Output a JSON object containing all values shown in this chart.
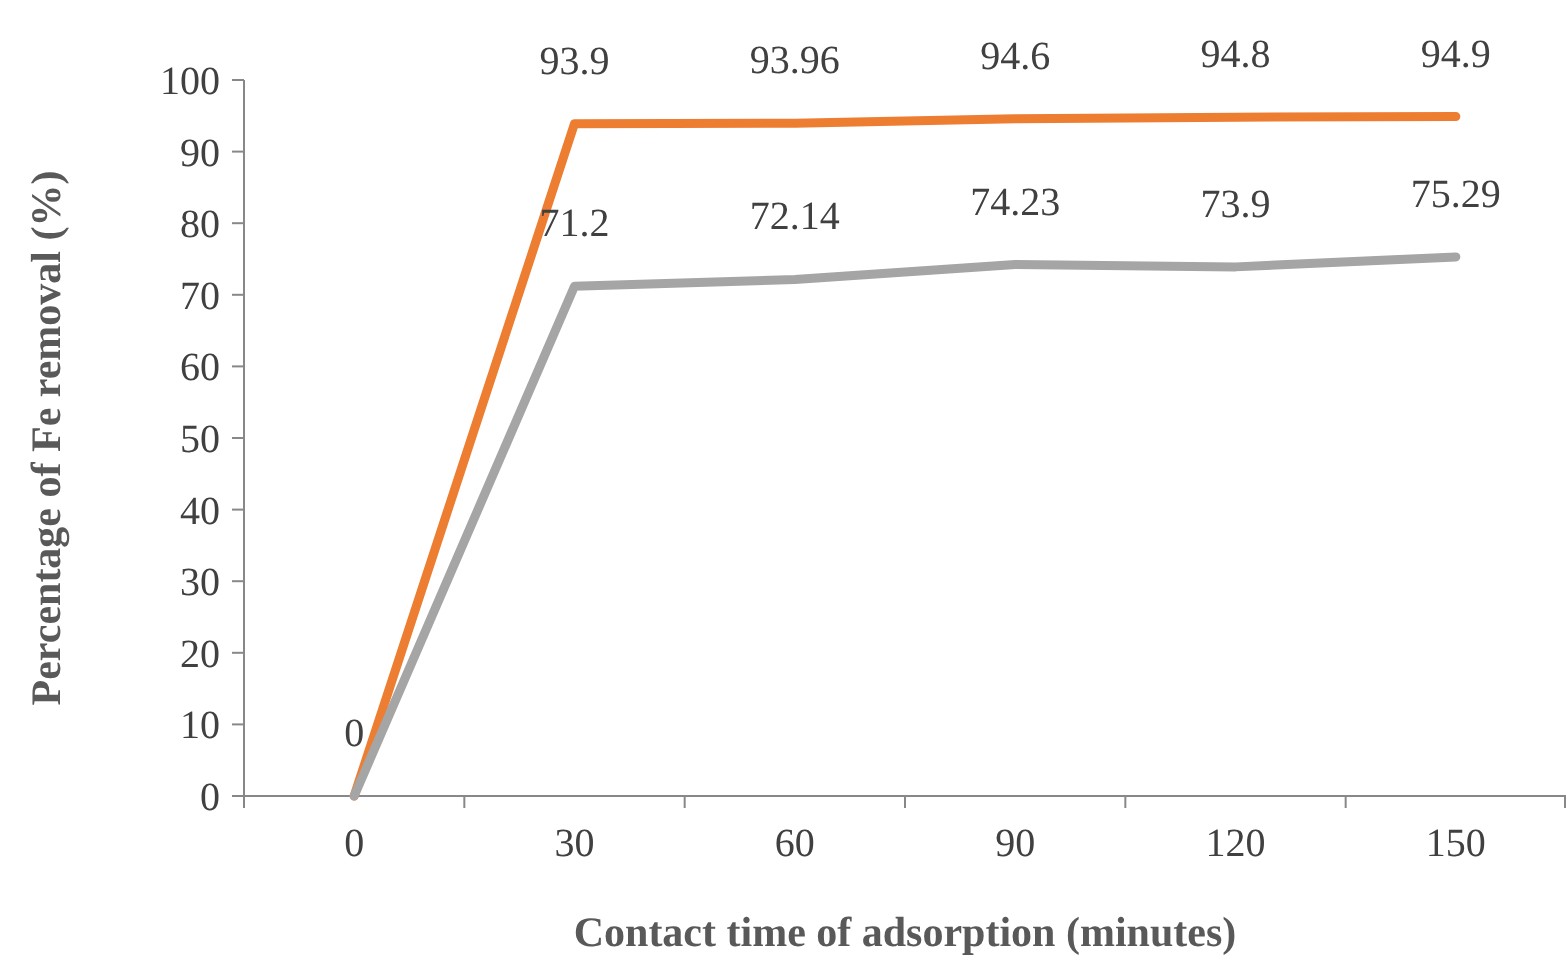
{
  "chart_data": {
    "type": "line",
    "xlabel": "Contact time of adsorption (minutes)",
    "ylabel": "Percentage of Fe removal (%)",
    "categories": [
      "0",
      "30",
      "60",
      "90",
      "120",
      "150"
    ],
    "series": [
      {
        "color": "#ed7d31",
        "values": [
          0,
          93.9,
          93.96,
          94.6,
          94.8,
          94.9
        ],
        "value_labels": [
          "0",
          "93.9",
          "93.96",
          "94.6",
          "94.8",
          "94.9"
        ]
      },
      {
        "color": "#a5a5a5",
        "values": [
          0,
          71.2,
          72.14,
          74.23,
          73.9,
          75.29
        ],
        "value_labels": [
          null,
          "71.2",
          "72.14",
          "74.23",
          "73.9",
          "75.29"
        ]
      }
    ],
    "ylim": [
      0,
      100
    ],
    "yticks": [
      0,
      10,
      20,
      30,
      40,
      50,
      60,
      70,
      80,
      90,
      100
    ],
    "grid": false,
    "marker": "none",
    "line_style": "solid"
  }
}
